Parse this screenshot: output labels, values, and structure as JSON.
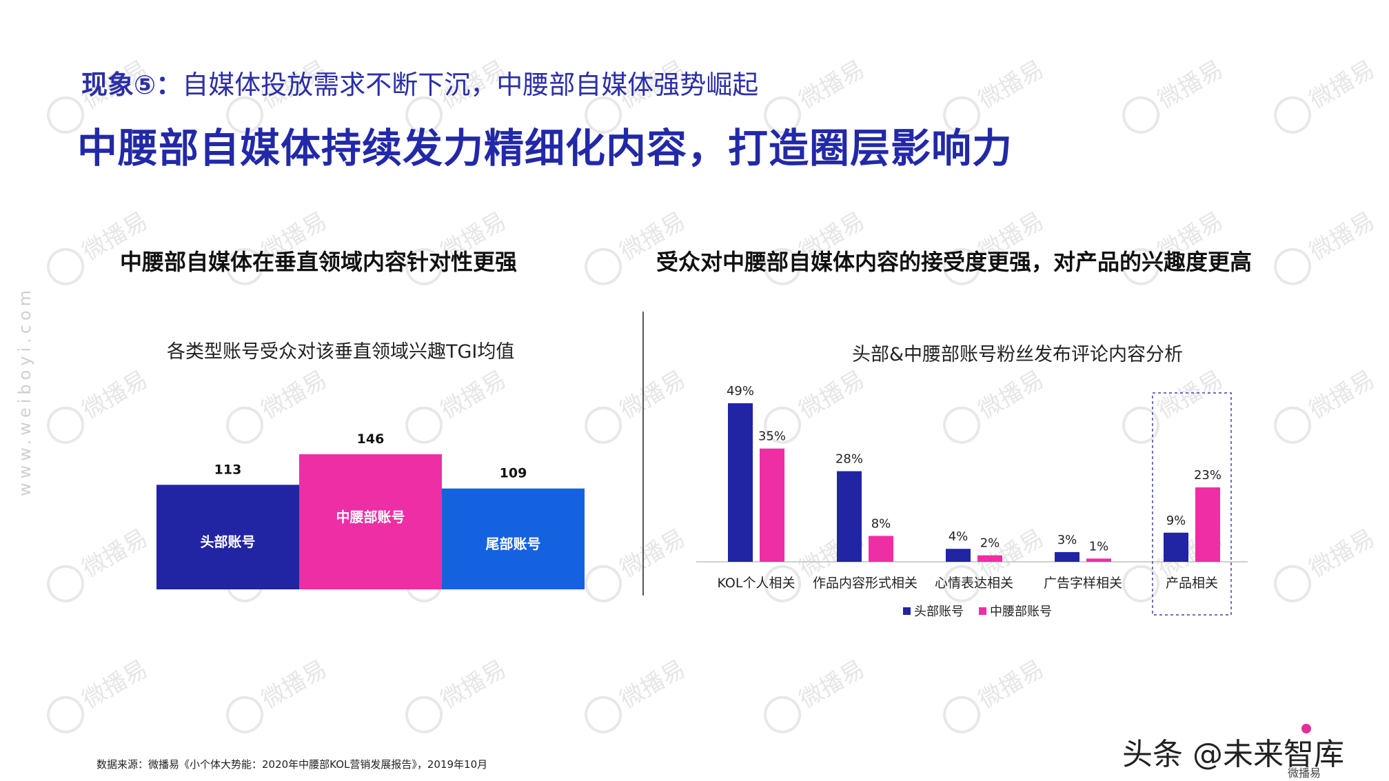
{
  "header": {
    "phenomenon_label": "现象⑤：",
    "phenomenon_text": "自媒体投放需求不断下沉，中腰部自媒体强势崛起",
    "main_title": "中腰部自媒体持续发力精细化内容，打造圈层影响力"
  },
  "left_section": {
    "title": "中腰部自媒体在垂直领域内容针对性更强"
  },
  "right_section": {
    "title": "受众对中腰部自媒体内容的接受度更强，对产品的兴趣度更高"
  },
  "watermark": {
    "text": "微播易",
    "side_url": "www.weiboyi.com"
  },
  "chart_data": [
    {
      "type": "bar",
      "title": "各类型账号受众对该垂直领域兴趣TGI均值",
      "categories": [
        "头部账号",
        "中腰部账号",
        "尾部账号"
      ],
      "values": [
        113,
        146,
        109
      ],
      "colors": [
        "#2124a3",
        "#ee2ea5",
        "#1462e0"
      ],
      "ylim": [
        0,
        160
      ]
    },
    {
      "type": "bar",
      "title": "头部&中腰部账号粉丝发布评论内容分析",
      "categories": [
        "KOL个人相关",
        "作品内容形式相关",
        "心情表达相关",
        "广告字样相关",
        "产品相关"
      ],
      "series": [
        {
          "name": "头部账号",
          "values": [
            49,
            28,
            4,
            3,
            9
          ],
          "labels": [
            "49%",
            "28%",
            "4%",
            "3%",
            "9%"
          ],
          "color": "#2124a3"
        },
        {
          "name": "中腰部账号",
          "values": [
            35,
            8,
            2,
            1,
            23
          ],
          "labels": [
            "35%",
            "8%",
            "2%",
            "1%",
            "23%"
          ],
          "color": "#ee2ea5"
        }
      ],
      "highlight_category": "产品相关",
      "ylim": [
        0,
        55
      ]
    }
  ],
  "footer": {
    "source": "数据来源：微播易《小个体大势能：2020年中腰部KOL营销发展报告》，2019年10月",
    "brand_mark": "头条 @未来智库",
    "brand_sub": "微播易"
  }
}
